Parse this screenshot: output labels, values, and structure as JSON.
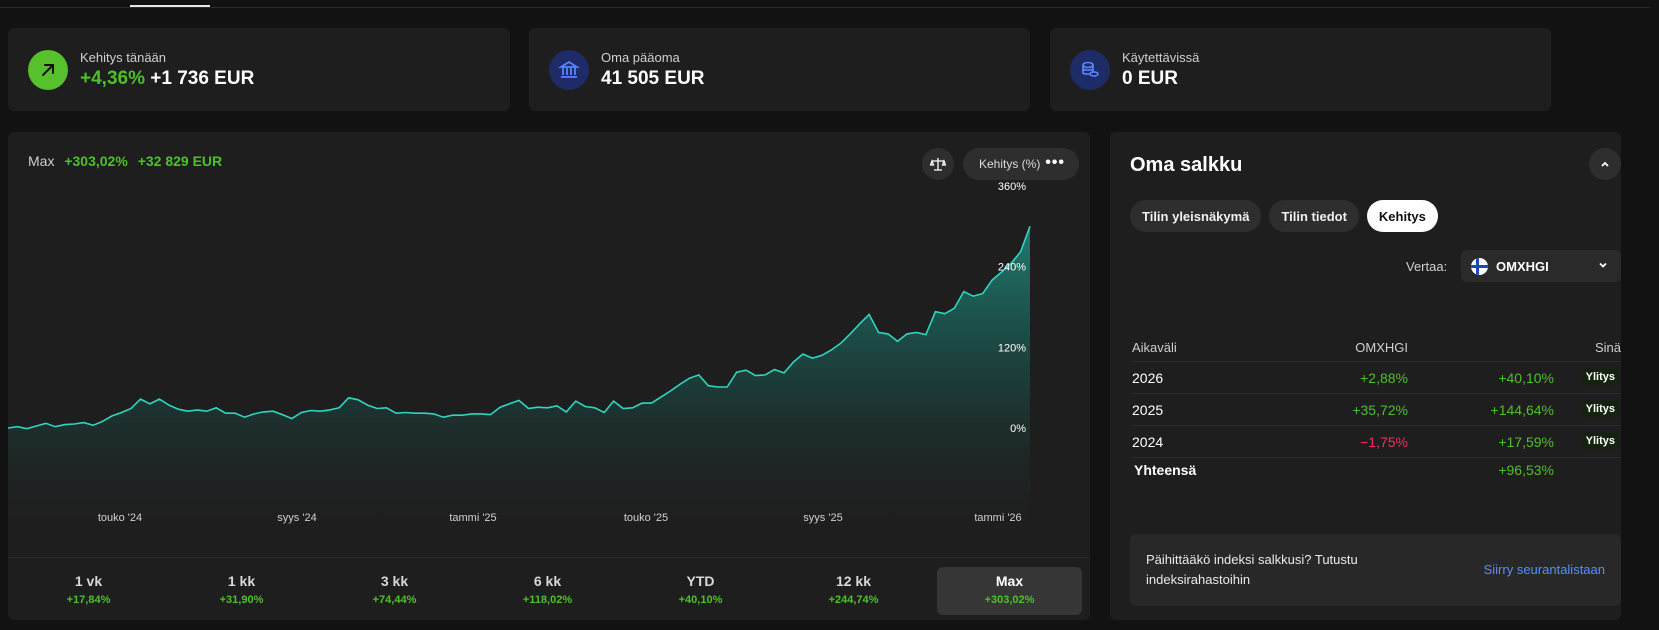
{
  "stats": [
    {
      "label": "Kehitys tänään",
      "value_pct": "+4,36%",
      "value": "+1 736 EUR",
      "icon": "arrow-up-right-icon",
      "icon_bg": "#56c12c"
    },
    {
      "label": "Oma pääoma",
      "value": "41 505 EUR",
      "icon": "bank-icon",
      "icon_bg": "#1d2b66"
    },
    {
      "label": "Käytettävissä",
      "value": "0 EUR",
      "icon": "coins-icon",
      "icon_bg": "#1d2b66"
    }
  ],
  "chart_header": {
    "period_label": "Max",
    "change_pct": "+303,02%",
    "change_eur": "+32 829 EUR",
    "metric_button": "Kehitys (%)"
  },
  "chart_data": {
    "type": "area",
    "x_tick_labels": [
      "touko '24",
      "syys '24",
      "tammi '25",
      "touko '25",
      "syys '25",
      "tammi '26"
    ],
    "y_tick_labels": [
      "360%",
      "240%",
      "120%",
      "0%"
    ],
    "ylim": [
      -5,
      360
    ],
    "series": [
      {
        "values": [
          0,
          2,
          -1,
          3,
          7,
          2,
          5,
          6,
          8,
          4,
          10,
          18,
          23,
          29,
          43,
          36,
          43,
          34,
          28,
          25,
          27,
          25,
          30,
          22,
          22,
          16,
          21,
          24,
          25,
          20,
          14,
          23,
          26,
          25,
          27,
          30,
          45,
          42,
          34,
          29,
          30,
          22,
          23,
          22,
          22,
          21,
          16,
          19,
          19,
          21,
          21,
          20,
          31,
          36,
          41,
          29,
          31,
          30,
          33,
          24,
          40,
          32,
          30,
          23,
          40,
          29,
          30,
          37,
          37,
          46,
          55,
          65,
          74,
          79,
          63,
          61,
          61,
          83,
          86,
          78,
          79,
          87,
          82,
          98,
          110,
          104,
          108,
          116,
          126,
          140,
          155,
          169,
          142,
          140,
          129,
          140,
          142,
          139,
          173,
          170,
          178,
          203,
          196,
          200,
          220,
          232,
          245,
          262,
          300
        ]
      }
    ],
    "line_color": "#2ed6c0",
    "grid": false
  },
  "periods": [
    {
      "label": "1 vk",
      "value": "+17,84%"
    },
    {
      "label": "1 kk",
      "value": "+31,90%"
    },
    {
      "label": "3 kk",
      "value": "+74,44%"
    },
    {
      "label": "6 kk",
      "value": "+118,02%"
    },
    {
      "label": "YTD",
      "value": "+40,10%"
    },
    {
      "label": "12 kk",
      "value": "+244,74%"
    },
    {
      "label": "Max",
      "value": "+303,02%",
      "active": true
    }
  ],
  "portfolio": {
    "title": "Oma salkku",
    "tabs": [
      "Tilin yleisnäkymä",
      "Tilin tiedot",
      "Kehitys"
    ],
    "compare_label": "Vertaa:",
    "compare_value": "OMXHGI",
    "table": {
      "headers": [
        "Aikaväli",
        "OMXHGI",
        "Sinä"
      ],
      "rows": [
        {
          "period": "2026",
          "index": "+2,88%",
          "you": "+40,10%",
          "badge": "Ylitys"
        },
        {
          "period": "2025",
          "index": "+35,72%",
          "you": "+144,64%",
          "badge": "Ylitys"
        },
        {
          "period": "2024",
          "index": "−1,75%",
          "you": "+17,59%",
          "badge": "Ylitys"
        }
      ],
      "total_label": "Yhteensä",
      "total_value": "+96,53%"
    },
    "promo_text": "Päihittääkö indeksi salkkusi? Tutustu indeksirahastoihin",
    "promo_link": "Siirry seurantalistaan"
  },
  "colors": {
    "positive": "#4ec02a",
    "negative": "#f0305a",
    "accent_link": "#5a8cff"
  }
}
